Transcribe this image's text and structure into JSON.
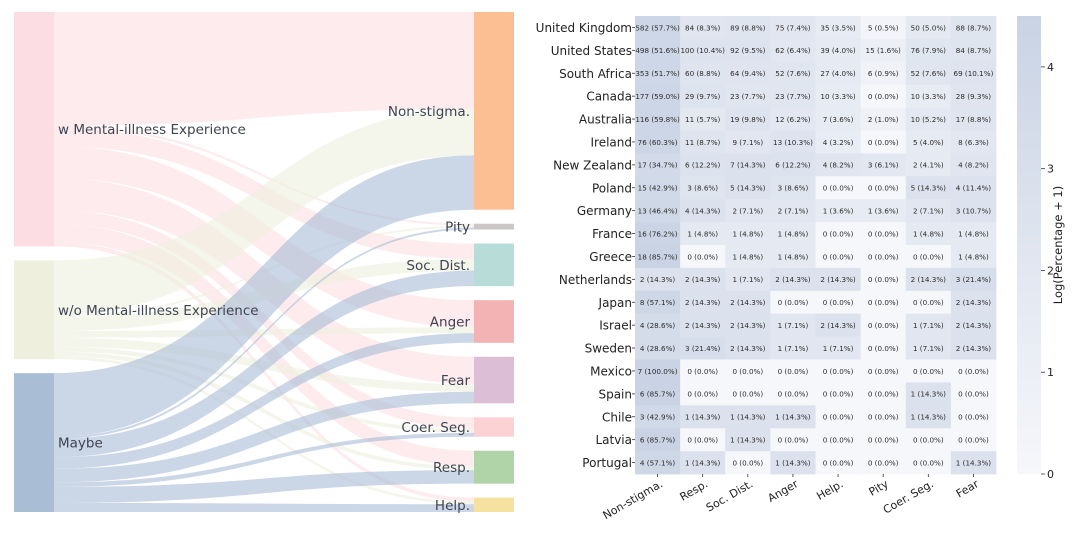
{
  "chart_data": [
    {
      "type": "sankey",
      "sources": [
        "w Mental-illness Experience",
        "w/o Mental-illness Experience",
        "Maybe"
      ],
      "targets": [
        "Non-stigma.",
        "Pity",
        "Soc. Dist.",
        "Anger",
        "Fear",
        "Coer. Seg.",
        "Resp.",
        "Help."
      ],
      "source_colors": [
        "#fcdde3",
        "#eef0dd",
        "#a9bdd5"
      ],
      "target_colors": [
        "#fcbf93",
        "#cdc6c6",
        "#b8ddd8",
        "#f3b2b3",
        "#dcbfd6",
        "#fcd2d4",
        "#b0d3a7",
        "#f6e2a0"
      ],
      "flows": [
        [
          25,
          0.5,
          4,
          7,
          7,
          3,
          4,
          1
        ],
        [
          12,
          0.5,
          3,
          1.5,
          2,
          1,
          1,
          0.7
        ],
        [
          14,
          0.5,
          4,
          2.5,
          3,
          1,
          3.5,
          2
        ]
      ]
    },
    {
      "type": "heatmap",
      "rows": [
        "United Kingdom",
        "United States",
        "South Africa",
        "Canada",
        "Australia",
        "Ireland",
        "New Zealand",
        "Poland",
        "Germany",
        "France",
        "Greece",
        "Netherlands",
        "Japan",
        "Israel",
        "Sweden",
        "Mexico",
        "Spain",
        "Chile",
        "Latvia",
        "Portugal"
      ],
      "columns": [
        "Non-stigma.",
        "Resp.",
        "Soc. Dist.",
        "Anger",
        "Help.",
        "Pity",
        "Coer. Seg.",
        "Fear"
      ],
      "cells": [
        [
          "582 (57.7%)",
          "84 (8.3%)",
          "89 (8.8%)",
          "75 (7.4%)",
          "35 (3.5%)",
          "5 (0.5%)",
          "50 (5.0%)",
          "88 (8.7%)"
        ],
        [
          "498 (51.6%)",
          "100 (10.4%)",
          "92 (9.5%)",
          "62 (6.4%)",
          "39 (4.0%)",
          "15 (1.6%)",
          "76 (7.9%)",
          "84 (8.7%)"
        ],
        [
          "353 (51.7%)",
          "60 (8.8%)",
          "64 (9.4%)",
          "52 (7.6%)",
          "27 (4.0%)",
          "6 (0.9%)",
          "52 (7.6%)",
          "69 (10.1%)"
        ],
        [
          "177 (59.0%)",
          "29 (9.7%)",
          "23 (7.7%)",
          "23 (7.7%)",
          "10 (3.3%)",
          "0 (0.0%)",
          "10 (3.3%)",
          "28 (9.3%)"
        ],
        [
          "116 (59.8%)",
          "11 (5.7%)",
          "19 (9.8%)",
          "12 (6.2%)",
          "7 (3.6%)",
          "2 (1.0%)",
          "10 (5.2%)",
          "17 (8.8%)"
        ],
        [
          "76 (60.3%)",
          "11 (8.7%)",
          "9 (7.1%)",
          "13 (10.3%)",
          "4 (3.2%)",
          "0 (0.0%)",
          "5 (4.0%)",
          "8 (6.3%)"
        ],
        [
          "17 (34.7%)",
          "6 (12.2%)",
          "7 (14.3%)",
          "6 (12.2%)",
          "4 (8.2%)",
          "3 (6.1%)",
          "2 (4.1%)",
          "4 (8.2%)"
        ],
        [
          "15 (42.9%)",
          "3 (8.6%)",
          "5 (14.3%)",
          "3 (8.6%)",
          "0 (0.0%)",
          "0 (0.0%)",
          "5 (14.3%)",
          "4 (11.4%)"
        ],
        [
          "13 (46.4%)",
          "4 (14.3%)",
          "2 (7.1%)",
          "2 (7.1%)",
          "1 (3.6%)",
          "1 (3.6%)",
          "2 (7.1%)",
          "3 (10.7%)"
        ],
        [
          "16 (76.2%)",
          "1 (4.8%)",
          "1 (4.8%)",
          "1 (4.8%)",
          "0 (0.0%)",
          "0 (0.0%)",
          "1 (4.8%)",
          "1 (4.8%)"
        ],
        [
          "18 (85.7%)",
          "0 (0.0%)",
          "1 (4.8%)",
          "1 (4.8%)",
          "0 (0.0%)",
          "0 (0.0%)",
          "0 (0.0%)",
          "1 (4.8%)"
        ],
        [
          "2 (14.3%)",
          "2 (14.3%)",
          "1 (7.1%)",
          "2 (14.3%)",
          "2 (14.3%)",
          "0 (0.0%)",
          "2 (14.3%)",
          "3 (21.4%)"
        ],
        [
          "8 (57.1%)",
          "2 (14.3%)",
          "2 (14.3%)",
          "0 (0.0%)",
          "0 (0.0%)",
          "0 (0.0%)",
          "0 (0.0%)",
          "2 (14.3%)"
        ],
        [
          "4 (28.6%)",
          "2 (14.3%)",
          "2 (14.3%)",
          "1 (7.1%)",
          "2 (14.3%)",
          "0 (0.0%)",
          "1 (7.1%)",
          "2 (14.3%)"
        ],
        [
          "4 (28.6%)",
          "3 (21.4%)",
          "2 (14.3%)",
          "1 (7.1%)",
          "1 (7.1%)",
          "0 (0.0%)",
          "1 (7.1%)",
          "2 (14.3%)"
        ],
        [
          "7 (100.0%)",
          "0 (0.0%)",
          "0 (0.0%)",
          "0 (0.0%)",
          "0 (0.0%)",
          "0 (0.0%)",
          "0 (0.0%)",
          "0 (0.0%)"
        ],
        [
          "6 (85.7%)",
          "0 (0.0%)",
          "0 (0.0%)",
          "0 (0.0%)",
          "0 (0.0%)",
          "0 (0.0%)",
          "1 (14.3%)",
          "0 (0.0%)"
        ],
        [
          "3 (42.9%)",
          "1 (14.3%)",
          "1 (14.3%)",
          "1 (14.3%)",
          "0 (0.0%)",
          "0 (0.0%)",
          "1 (14.3%)",
          "0 (0.0%)"
        ],
        [
          "6 (85.7%)",
          "0 (0.0%)",
          "1 (14.3%)",
          "0 (0.0%)",
          "0 (0.0%)",
          "0 (0.0%)",
          "0 (0.0%)",
          "0 (0.0%)"
        ],
        [
          "4 (57.1%)",
          "1 (14.3%)",
          "0 (0.0%)",
          "1 (14.3%)",
          "0 (0.0%)",
          "0 (0.0%)",
          "0 (0.0%)",
          "1 (14.3%)"
        ]
      ],
      "colorbar": {
        "label": "Log(Percentage + 1)",
        "ticks": [
          "0",
          "1",
          "2",
          "3",
          "4"
        ],
        "range": [
          0,
          4.5
        ],
        "color_low": "#f6f7fb",
        "color_high": "#c9d3e4"
      }
    }
  ]
}
